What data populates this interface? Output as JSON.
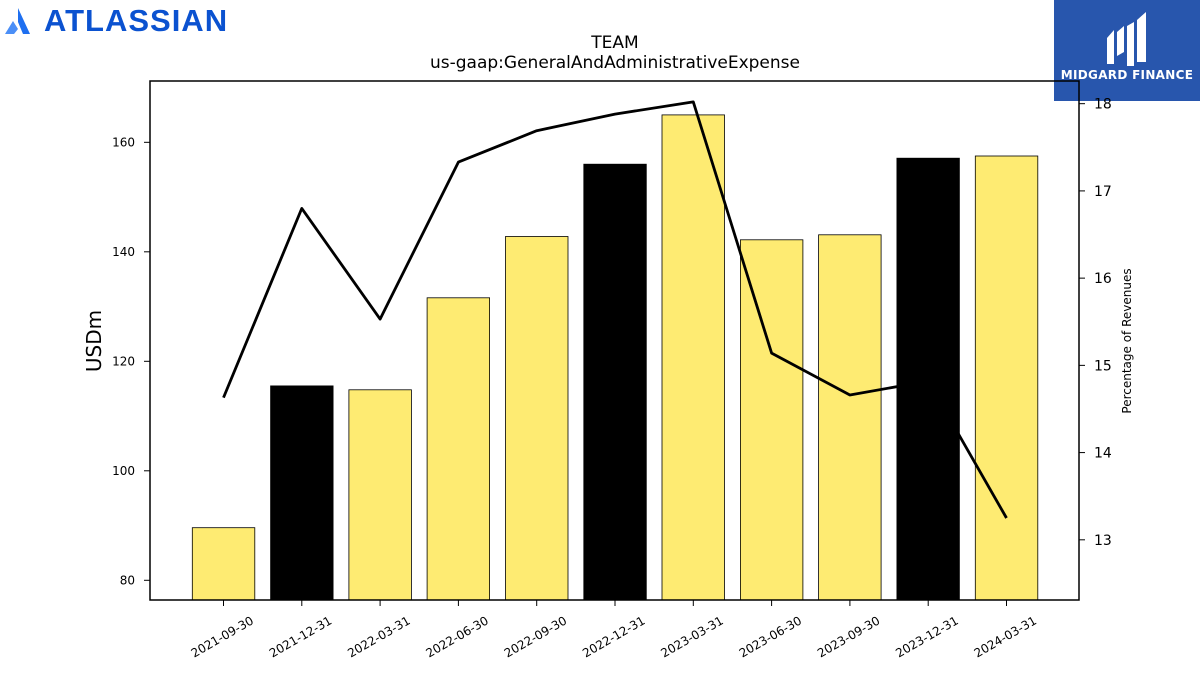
{
  "branding": {
    "left_logo_text": "ATLASSIAN",
    "right_logo_text": "MIDGARD FINANCE",
    "left_logo_color": "#0b52d0",
    "right_logo_bg": "#2856ad"
  },
  "chart_data": {
    "type": "bar",
    "title": "TEAM",
    "subtitle": "us-gaap:GeneralAndAdministrativeExpense",
    "ylabel": "USDm",
    "y2label": "Percentage of Revenues",
    "ylim": [
      76.4,
      171.2
    ],
    "y2lim": [
      12.31,
      18.26
    ],
    "yticks": [
      80,
      100,
      120,
      140,
      160
    ],
    "y2ticks": [
      13,
      14,
      15,
      16,
      17,
      18
    ],
    "categories": [
      "2021-09-30",
      "2021-12-31",
      "2022-03-31",
      "2022-06-30",
      "2022-09-30",
      "2022-12-31",
      "2023-03-31",
      "2023-06-30",
      "2023-09-30",
      "2023-12-31",
      "2024-03-31"
    ],
    "series": [
      {
        "axis": "left",
        "kind": "bar",
        "values": [
          89.6,
          115.5,
          114.8,
          131.6,
          142.8,
          156.0,
          165.0,
          142.2,
          143.1,
          157.1,
          157.5
        ],
        "colors": [
          "#feeb72",
          "#000000",
          "#feeb72",
          "#feeb72",
          "#feeb72",
          "#000000",
          "#feeb72",
          "#feeb72",
          "#feeb72",
          "#000000",
          "#feeb72"
        ]
      },
      {
        "axis": "right",
        "kind": "line",
        "color": "#000000",
        "values": [
          14.63,
          16.8,
          15.53,
          17.33,
          17.69,
          17.88,
          18.02,
          15.14,
          14.66,
          14.82,
          13.25
        ]
      }
    ],
    "grid": false
  }
}
